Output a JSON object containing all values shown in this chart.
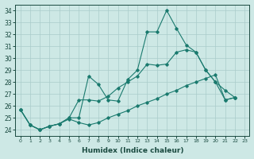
{
  "xlabel": "Humidex (Indice chaleur)",
  "bg_color": "#cde8e5",
  "grid_color": "#aaccca",
  "line_color": "#1a7a6e",
  "line1": [
    25.7,
    24.4,
    24.0,
    24.3,
    24.5,
    25.0,
    25.0,
    28.5,
    27.8,
    26.5,
    26.4,
    28.2,
    29.0,
    32.2,
    32.2,
    34.0,
    32.5,
    31.1,
    30.5,
    29.0,
    28.0,
    27.3,
    26.7
  ],
  "line2": [
    25.7,
    24.4,
    24.0,
    24.3,
    24.5,
    25.0,
    26.5,
    26.5,
    26.4,
    26.8,
    27.5,
    28.0,
    28.5,
    29.5,
    29.4,
    29.5,
    30.5,
    30.7,
    30.5,
    29.0,
    28.0,
    26.5,
    26.7
  ],
  "line3": [
    25.7,
    24.4,
    24.0,
    24.3,
    24.5,
    24.9,
    24.6,
    24.4,
    24.6,
    25.0,
    25.3,
    25.6,
    26.0,
    26.3,
    26.6,
    27.0,
    27.3,
    27.7,
    28.0,
    28.3,
    28.6,
    26.5,
    26.7
  ],
  "ylim": [
    23.5,
    34.5
  ],
  "yticks": [
    24,
    25,
    26,
    27,
    28,
    29,
    30,
    31,
    32,
    33,
    34
  ],
  "xticks": [
    0,
    1,
    2,
    3,
    4,
    5,
    6,
    7,
    8,
    9,
    10,
    11,
    12,
    13,
    14,
    15,
    16,
    17,
    18,
    19,
    20,
    21,
    22,
    23
  ]
}
